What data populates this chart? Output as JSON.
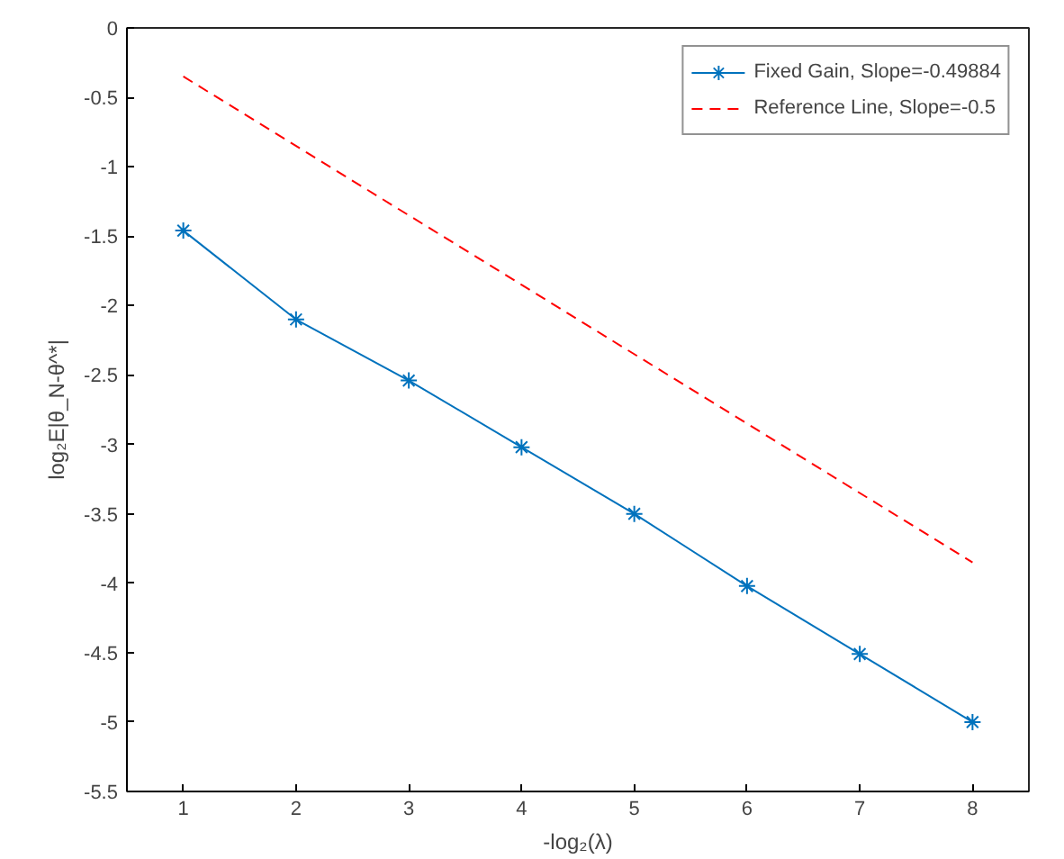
{
  "chart_data": {
    "type": "line",
    "xlabel": "-log₂(λ)",
    "ylabel": "log₂E|θ_N-θ^*|",
    "x": [
      1,
      2,
      3,
      4,
      5,
      6,
      7,
      8
    ],
    "series": [
      {
        "name": "Fixed Gain, Slope=-0.49884",
        "color": "#0072bd",
        "values": [
          -1.46,
          -2.1,
          -2.54,
          -3.02,
          -3.5,
          -4.02,
          -4.51,
          -5.0
        ],
        "marker": "cross",
        "line_style": "solid"
      },
      {
        "name": "Reference Line, Slope=-0.5",
        "color": "#ff0000",
        "x": [
          1,
          8
        ],
        "values": [
          -0.35,
          -3.85
        ],
        "marker": "none",
        "line_style": "dashed"
      }
    ],
    "xlim": [
      0.5,
      8.5
    ],
    "xticks": [
      1,
      2,
      3,
      4,
      5,
      6,
      7,
      8
    ],
    "ylim": [
      -5.5,
      0
    ],
    "yticks": [
      -5.5,
      -5,
      -4.5,
      -4,
      -3.5,
      -3,
      -2.5,
      -2,
      -1.5,
      -1,
      -0.5,
      0
    ],
    "grid": false,
    "legend": "top right"
  }
}
